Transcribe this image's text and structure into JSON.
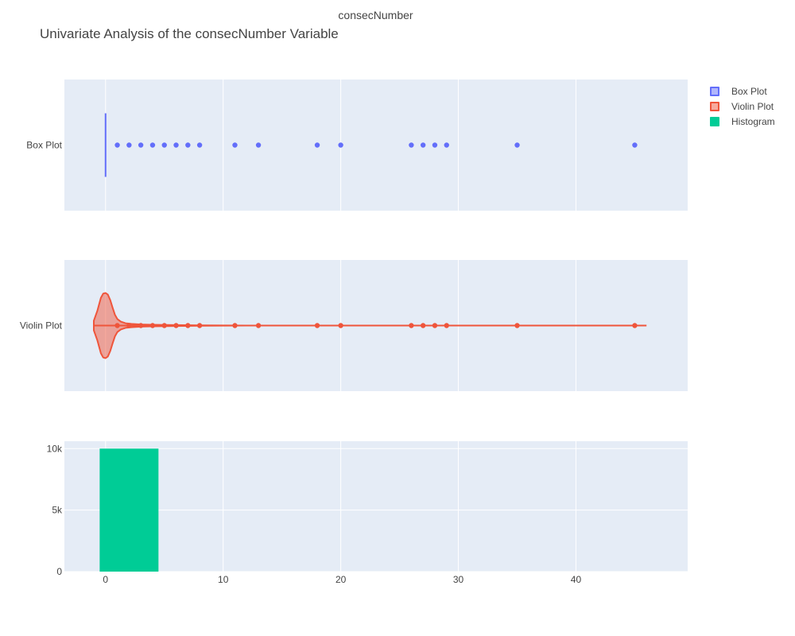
{
  "figure": {
    "title": "Univariate Analysis of the consecNumber Variable",
    "top_axis_title": "consecNumber"
  },
  "legend": [
    {
      "name": "Box Plot",
      "fill": "rgba(99,110,250,0.5)",
      "border": "#636efa"
    },
    {
      "name": "Violin Plot",
      "fill": "rgba(239,85,59,0.5)",
      "border": "#ef553b"
    },
    {
      "name": "Histogram",
      "fill": "#00cc96",
      "border": "#00cc96"
    }
  ],
  "colors": {
    "plot_bg": "#e5ecf6",
    "grid": "#ffffff",
    "box": "#636efa",
    "violin": "#ef553b",
    "histogram": "#00cc96"
  },
  "chart_data": [
    {
      "type": "box",
      "name": "Box Plot",
      "orientation": "horizontal",
      "category_label": "Box Plot",
      "median": 0,
      "q1": 0,
      "q3": 0,
      "whisker_low": 0,
      "whisker_high": 0,
      "outliers": [
        1,
        2,
        3,
        4,
        5,
        6,
        7,
        8,
        11,
        13,
        18,
        20,
        26,
        27,
        28,
        29,
        35,
        45
      ],
      "xlim": [
        -3.5,
        49.5
      ],
      "grid": true
    },
    {
      "type": "violin",
      "name": "Violin Plot",
      "orientation": "horizontal",
      "category_label": "Violin Plot",
      "points": [
        1,
        2,
        3,
        4,
        5,
        6,
        7,
        8,
        11,
        13,
        18,
        20,
        26,
        27,
        28,
        29,
        35,
        45
      ],
      "range": [
        -1,
        46
      ],
      "density": [
        [
          -1.0,
          0.15
        ],
        [
          -0.7,
          0.45
        ],
        [
          -0.4,
          0.85
        ],
        [
          -0.2,
          0.98
        ],
        [
          0.0,
          1.0
        ],
        [
          0.2,
          0.95
        ],
        [
          0.4,
          0.78
        ],
        [
          0.6,
          0.55
        ],
        [
          0.8,
          0.33
        ],
        [
          1.0,
          0.2
        ],
        [
          1.3,
          0.12
        ],
        [
          1.7,
          0.07
        ],
        [
          2.2,
          0.05
        ],
        [
          3.0,
          0.035
        ],
        [
          4.0,
          0.025
        ],
        [
          6.0,
          0.015
        ],
        [
          8.0,
          0.008
        ],
        [
          12.0,
          0.0
        ]
      ],
      "xlim": [
        -3.5,
        49.5
      ],
      "grid": true
    },
    {
      "type": "bar",
      "name": "Histogram",
      "bins": [
        {
          "start": -0.5,
          "end": 4.5,
          "count": 10000
        }
      ],
      "ylim": [
        0,
        10600
      ],
      "yticks": [
        0,
        5000,
        10000
      ],
      "ytick_labels": [
        "0",
        "5k",
        "10k"
      ],
      "xlim": [
        -3.5,
        49.5
      ],
      "xticks": [
        0,
        10,
        20,
        30,
        40
      ],
      "xtick_labels": [
        "0",
        "10",
        "20",
        "30",
        "40"
      ],
      "grid": true,
      "legend_position": "top-right"
    }
  ]
}
